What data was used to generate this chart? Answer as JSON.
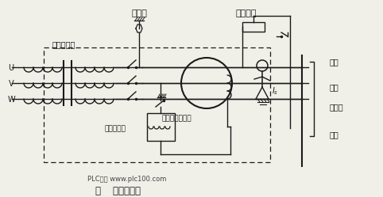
{
  "bg_color": "#f0efe8",
  "line_color": "#1a1a1a",
  "title_main": "主开关",
  "title_test": "测试回路",
  "label_transformer": "电源变压器",
  "label_zero_ct": "零序电流互感器",
  "label_magnet": "电磁脱扣器",
  "label_uvw": [
    "U",
    "V",
    "W"
  ],
  "label_right": [
    "线座",
    "瓷底",
    "保险丝",
    "线座"
  ],
  "label_bottom": "PLC之家 www.plc100.com",
  "label_fig": "图    漏电断路器",
  "label_ia": "$I_s$",
  "fig_width": 4.82,
  "fig_height": 2.49,
  "dpi": 100
}
